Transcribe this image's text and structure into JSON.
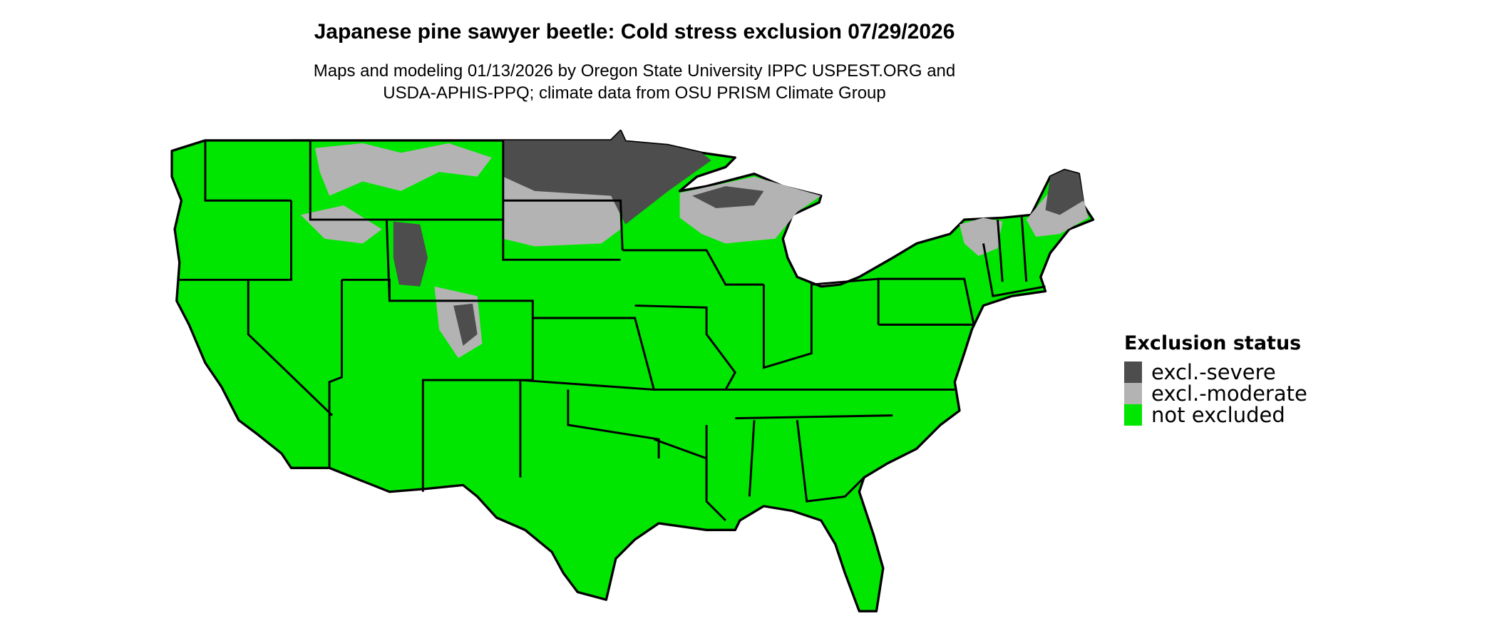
{
  "title": "Japanese pine sawyer beetle: Cold stress exclusion 07/29/2026",
  "subtitle_line1": "Maps and modeling 01/13/2026 by Oregon State University IPPC USPEST.ORG and",
  "subtitle_line2": "USDA-APHIS-PPQ; climate data from OSU PRISM Climate Group",
  "legend": {
    "title": "Exclusion status",
    "items": [
      {
        "label": "excl.-severe",
        "color": "#4d4d4d"
      },
      {
        "label": "excl.-moderate",
        "color": "#b3b3b3"
      },
      {
        "label": "not excluded",
        "color": "#00e600"
      }
    ]
  }
}
